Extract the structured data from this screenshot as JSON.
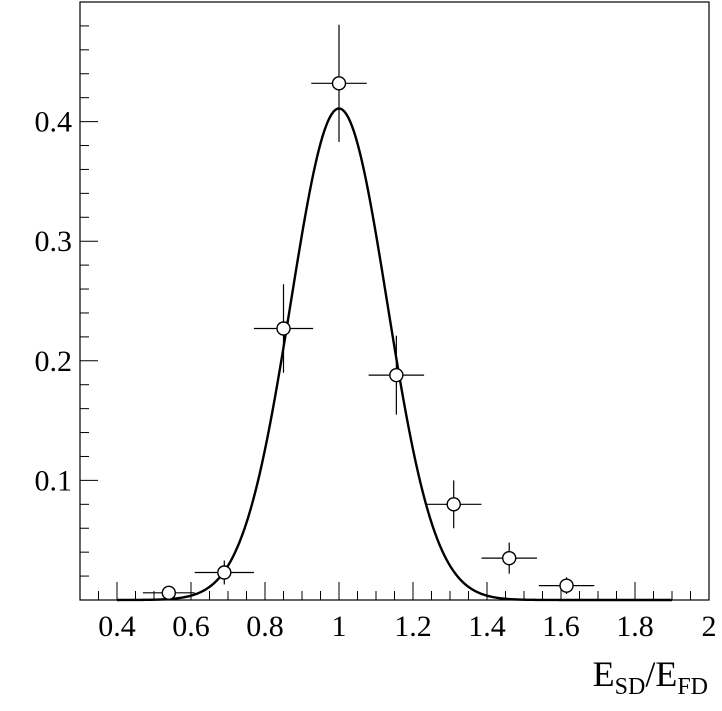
{
  "chart_data": {
    "type": "scatter",
    "xlabel": {
      "parts": [
        {
          "text": "E",
          "sub": false
        },
        {
          "text": "SD",
          "sub": true
        },
        {
          "text": "/E",
          "sub": false
        },
        {
          "text": "FD",
          "sub": true
        }
      ]
    },
    "ylabel": "",
    "xlim": [
      0.3,
      2.0
    ],
    "ylim": [
      0,
      0.5
    ],
    "x_ticks": [
      {
        "value": 0.4,
        "label": "0.4"
      },
      {
        "value": 0.6,
        "label": "0.6"
      },
      {
        "value": 0.8,
        "label": "0.8"
      },
      {
        "value": 1.0,
        "label": "1"
      },
      {
        "value": 1.2,
        "label": "1.2"
      },
      {
        "value": 1.4,
        "label": "1.4"
      },
      {
        "value": 1.6,
        "label": "1.6"
      },
      {
        "value": 1.8,
        "label": "1.8"
      },
      {
        "value": 2.0,
        "label": "2"
      }
    ],
    "y_ticks": [
      {
        "value": 0.1,
        "label": "0.1"
      },
      {
        "value": 0.2,
        "label": "0.2"
      },
      {
        "value": 0.3,
        "label": "0.3"
      },
      {
        "value": 0.4,
        "label": "0.4"
      }
    ],
    "x_minor_step": 0.05,
    "y_minor_step": 0.02,
    "grid": false,
    "legend": "none",
    "series": [
      {
        "type": "points_with_errors",
        "marker": "open-circle",
        "points": [
          {
            "x": 0.54,
            "y": 0.006,
            "xerr": 0.07,
            "yerr": 0.002
          },
          {
            "x": 0.69,
            "y": 0.023,
            "xerr": 0.08,
            "yerr": 0.01
          },
          {
            "x": 0.85,
            "y": 0.227,
            "xerr": 0.08,
            "yerr": 0.037
          },
          {
            "x": 1.0,
            "y": 0.432,
            "xerr": 0.075,
            "yerr": 0.049
          },
          {
            "x": 1.155,
            "y": 0.188,
            "xerr": 0.075,
            "yerr": 0.033
          },
          {
            "x": 1.31,
            "y": 0.08,
            "xerr": 0.075,
            "yerr": 0.02
          },
          {
            "x": 1.46,
            "y": 0.035,
            "xerr": 0.075,
            "yerr": 0.013
          },
          {
            "x": 1.615,
            "y": 0.012,
            "xerr": 0.075,
            "yerr": 0.007
          }
        ]
      },
      {
        "type": "gaussian_fit",
        "amplitude": 0.411,
        "mean": 1.0,
        "sigma": 0.13,
        "x_range": [
          0.4,
          1.9
        ]
      }
    ],
    "colors": {
      "axis": "#000000",
      "data": "#000000",
      "fit": "#000000",
      "background": "#ffffff"
    }
  }
}
